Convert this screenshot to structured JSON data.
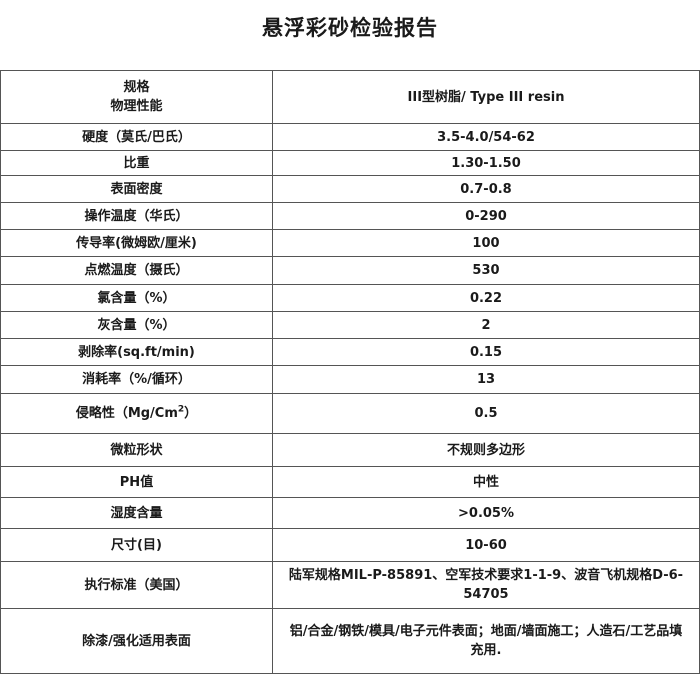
{
  "title": "悬浮彩砂检验报告",
  "header": {
    "spec_line1": "规格",
    "spec_line2": "物理性能",
    "value": "III型树脂/  Type III resin"
  },
  "rows": [
    {
      "label": "硬度（莫氏/巴氏）",
      "value": "3.5-4.0/54-62"
    },
    {
      "label": "比重",
      "value": "1.30-1.50"
    },
    {
      "label": "表面密度",
      "value": "0.7-0.8"
    },
    {
      "label": "操作温度（华氏）",
      "value": "0-290"
    },
    {
      "label": "传导率(微姆欧/厘米)",
      "value": "100"
    },
    {
      "label": "点燃温度（摄氏）",
      "value": "530"
    },
    {
      "label": "氯含量（%）",
      "value": "0.22"
    },
    {
      "label": "灰含量（%）",
      "value": "2"
    },
    {
      "label": "剥除率(sq.ft/min)",
      "value": "0.15"
    },
    {
      "label": "消耗率（%/循环）",
      "value": "13"
    },
    {
      "label": "侵略性（Mg/Cm",
      "label_sup": "2",
      "label_end": "）",
      "value": "0.5"
    },
    {
      "label": "微粒形状",
      "value": "不规则多边形"
    },
    {
      "label": "PH值",
      "value": "中性"
    },
    {
      "label": "湿度含量",
      "value": ">0.05%"
    },
    {
      "label": "尺寸(目)",
      "value": "10-60"
    },
    {
      "label": "执行标准（美国）",
      "value": "陆军规格MIL-P-85891、空军技术要求1-1-9、波音飞机规格D-6-54705"
    },
    {
      "label": "除漆/强化适用表面",
      "value": "铝/合金/钢铁/模具/电子元件表面；地面/墙面施工；人造石/工艺品填充用."
    }
  ]
}
